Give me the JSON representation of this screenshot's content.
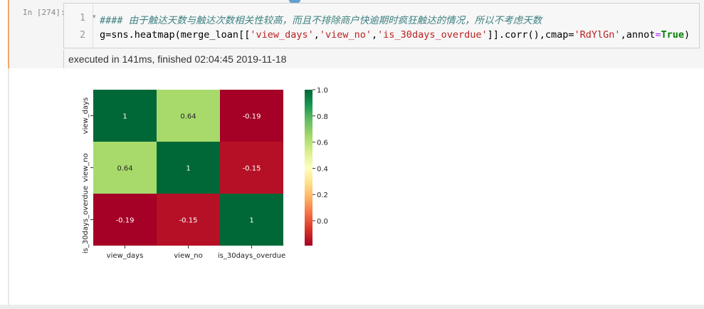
{
  "cell": {
    "prompt": "In  [274]:",
    "line_numbers": [
      "1",
      "2"
    ],
    "code_line1": "#### 由于触达天数与触达次数相关性较高，而且不排除商户快逾期时疯狂触达的情况，所以不考虑天数",
    "code_line2": {
      "p1": "g=sns.heatmap(merge_loan[[",
      "s1": "'view_days'",
      "c1": ",",
      "s2": "'view_no'",
      "c2": ",",
      "s3": "'is_30days_overdue'",
      "p2": "]].corr(),cmap=",
      "s4": "'RdYlGn'",
      "p3": ",annot",
      "op": "=",
      "kw": "True",
      "p4": ")"
    },
    "execution_info": "executed in 141ms, finished 02:04:45 2019-11-18"
  },
  "chart_data": {
    "type": "heatmap",
    "cmap": "RdYlGn",
    "rows": [
      "view_days",
      "view_no",
      "is_30days_overdue"
    ],
    "columns": [
      "view_days",
      "view_no",
      "is_30days_overdue"
    ],
    "values": [
      [
        1,
        0.64,
        -0.19
      ],
      [
        0.64,
        1,
        -0.15
      ],
      [
        -0.19,
        -0.15,
        1
      ]
    ],
    "annotations": [
      [
        "1",
        "0.64",
        "-0.19"
      ],
      [
        "0.64",
        "1",
        "-0.15"
      ],
      [
        "-0.19",
        "-0.15",
        "1"
      ]
    ],
    "colorbar": {
      "range": [
        -0.19,
        1.0
      ],
      "ticks": [
        "1.0",
        "0.8",
        "0.6",
        "0.4",
        "0.2",
        "0.0"
      ]
    },
    "colors": {
      "high": "#006837",
      "light_green": "#a6d96a",
      "red_dark": "#a50026",
      "red": "#b40f26"
    }
  }
}
